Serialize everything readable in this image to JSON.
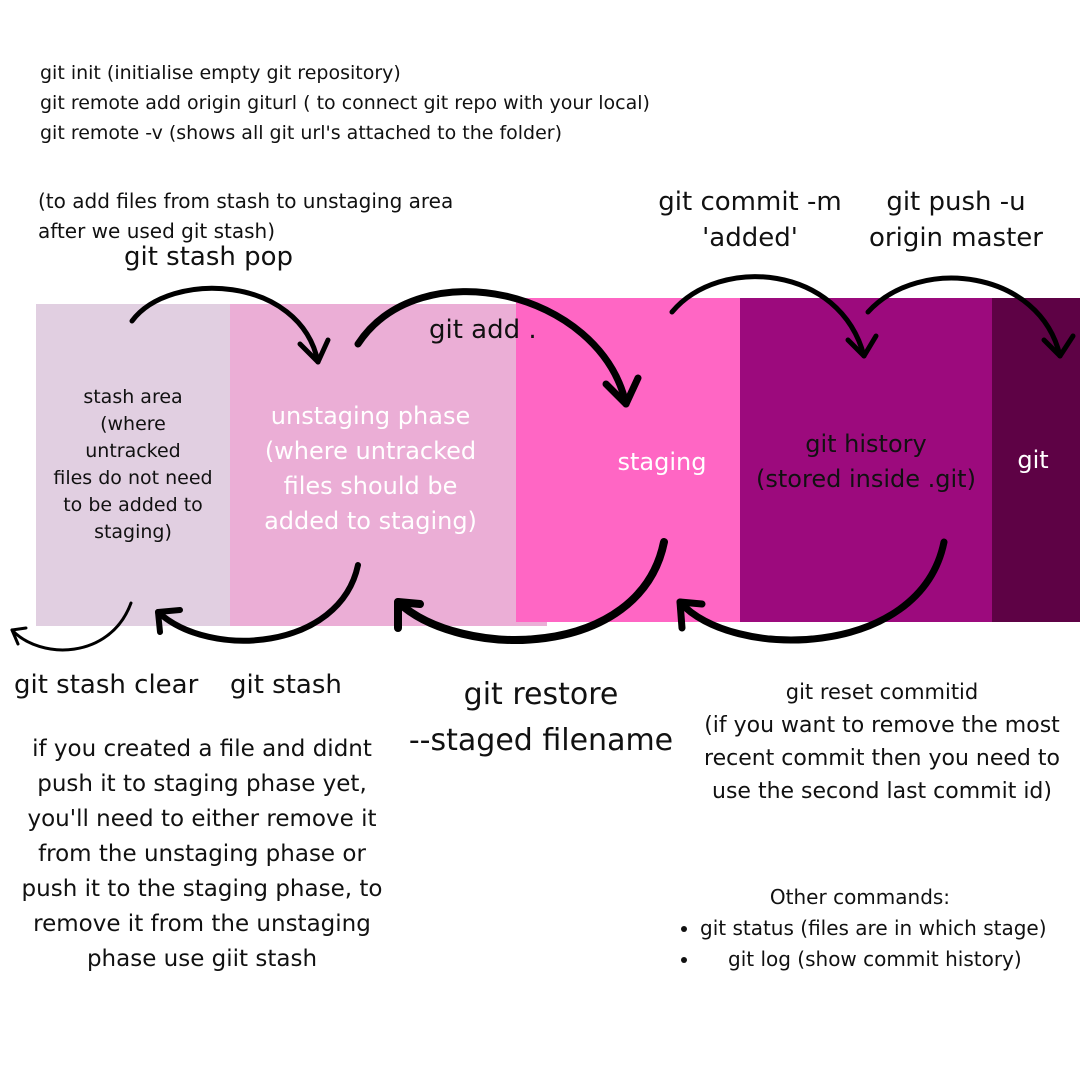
{
  "intro_commands": [
    "git init (initialise empty git repository)",
    "git remote add origin giturl ( to connect git repo with your local)",
    "git  remote -v (shows all  git url's attached to the folder)"
  ],
  "stash_pop": {
    "note_lines": [
      "(to add files from stash to unstaging area",
      "after we used git stash)"
    ],
    "command": "git stash pop"
  },
  "top_labels": {
    "git_add": "git add .",
    "git_commit_lines": [
      "git commit -m",
      "'added'"
    ],
    "git_push_lines": [
      "git push -u",
      "origin master"
    ]
  },
  "zones": {
    "stash_area": [
      "stash area",
      "(where",
      "untracked",
      "files do not need",
      "to be added to",
      "staging)"
    ],
    "unstaging": [
      "unstaging phase",
      "(where untracked",
      "files should be",
      "added to staging)"
    ],
    "staging": "staging",
    "history": [
      "git history",
      "(stored inside .git)"
    ],
    "git": "git"
  },
  "colors": {
    "stash_area": "#e1cfe1",
    "unstaging": "#ebaed6",
    "staging": "#ff66c4",
    "history": "#9c0a7d",
    "git": "#5e0245",
    "arrow": "#000000"
  },
  "bottom_labels": {
    "git_stash_clear": "git stash clear",
    "git_stash": "git stash",
    "git_restore_lines": [
      "git restore",
      "--staged filename"
    ],
    "git_reset": "git reset commitid",
    "git_reset_note_lines": [
      "(if you want to remove the most",
      "recent commit then you need to",
      "use the second last commit id)"
    ]
  },
  "stash_note_lines": [
    "if you created a file and didnt",
    "push it to staging phase yet,",
    "you'll need to either remove it",
    "from the unstaging phase or",
    "push it to the staging phase, to",
    "remove it from the unstaging",
    "phase use giit stash"
  ],
  "other_commands": {
    "title": "Other commands:",
    "items": [
      "git status (files are in which stage)",
      "git log (show commit history)"
    ]
  }
}
